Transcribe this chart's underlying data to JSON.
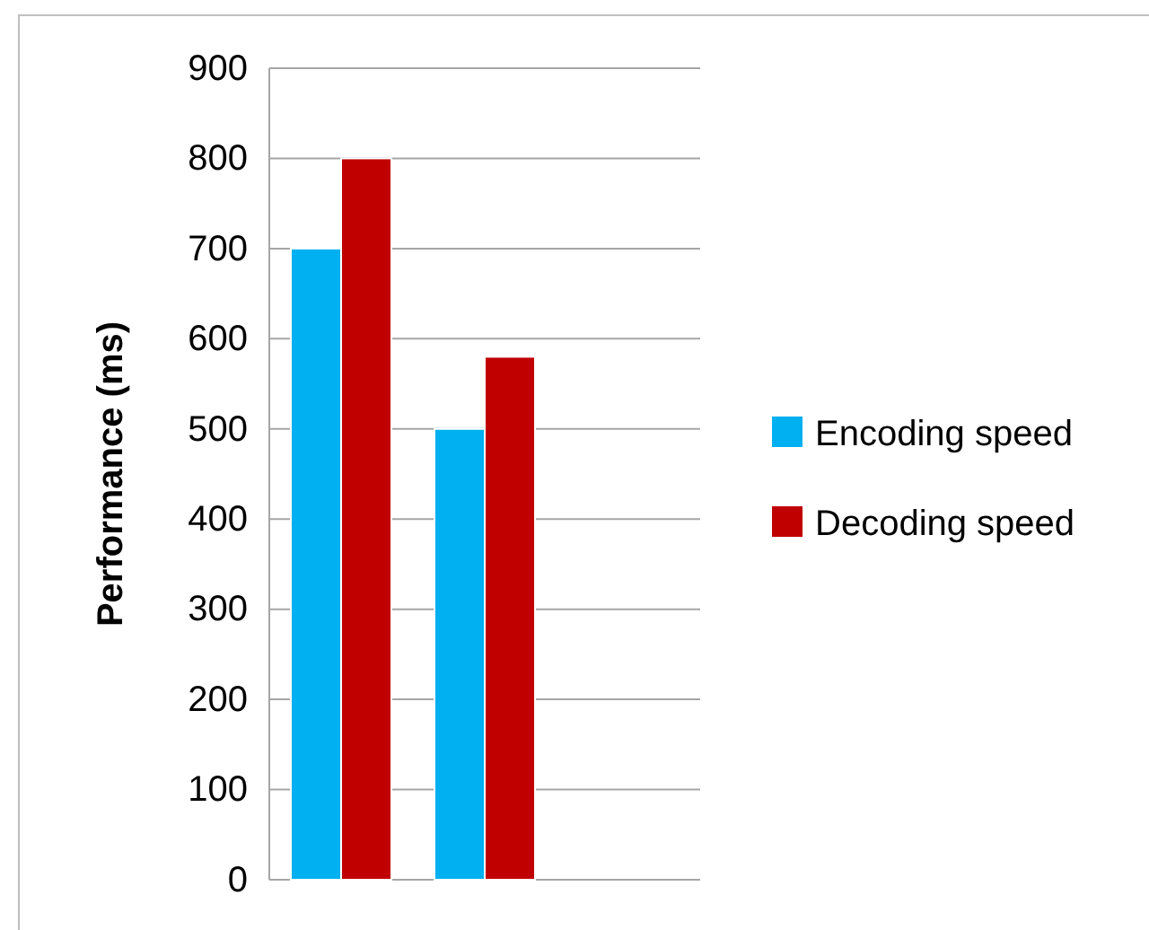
{
  "chart_data": {
    "type": "bar",
    "ylabel": "Performance (ms)",
    "categories": [
      null,
      null,
      null
    ],
    "series": [
      {
        "name": "Encoding speed",
        "color": "#00b0f0",
        "values": [
          700,
          500,
          null
        ]
      },
      {
        "name": "Decoding speed",
        "color": "#c00000",
        "values": [
          800,
          580,
          null
        ]
      }
    ],
    "ylim": [
      0,
      900
    ],
    "yticks": [
      0,
      100,
      200,
      300,
      400,
      500,
      600,
      700,
      800,
      900
    ],
    "grid": "y",
    "legend": "right"
  }
}
